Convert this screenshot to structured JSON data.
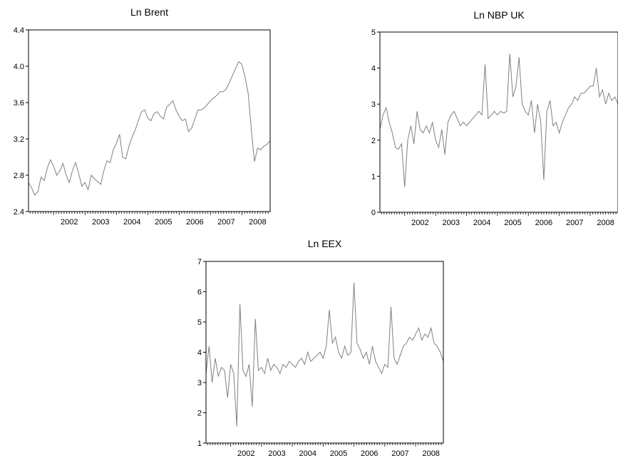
{
  "chart_data": [
    {
      "type": "line",
      "title": "Ln Brent",
      "xlabel": "",
      "ylabel": "",
      "xlim": [
        2001.2,
        2008.9
      ],
      "ylim": [
        2.4,
        4.4
      ],
      "yticks": [
        2.4,
        2.8,
        3.2,
        3.6,
        4.0,
        4.4
      ],
      "ytick_labels": [
        "2.4",
        "2.8",
        "3.2",
        "3.6",
        "4.0",
        "4.4"
      ],
      "xticks": [
        2002,
        2003,
        2004,
        2005,
        2006,
        2007,
        2008
      ],
      "xtick_labels": [
        "2002",
        "2003",
        "2004",
        "2005",
        "2006",
        "2007",
        "2008"
      ],
      "grid": false,
      "line_color": "#808080",
      "series": [
        {
          "x": [
            2001.2,
            2001.3,
            2001.4,
            2001.5,
            2001.6,
            2001.7,
            2001.8,
            2001.9,
            2002.0,
            2002.1,
            2002.2,
            2002.3,
            2002.4,
            2002.5,
            2002.6,
            2002.7,
            2002.8,
            2002.9,
            2003.0,
            2003.1,
            2003.2,
            2003.3,
            2003.4,
            2003.5,
            2003.6,
            2003.7,
            2003.8,
            2003.9,
            2004.0,
            2004.1,
            2004.2,
            2004.3,
            2004.4,
            2004.5,
            2004.6,
            2004.7,
            2004.8,
            2004.9,
            2005.0,
            2005.1,
            2005.2,
            2005.3,
            2005.4,
            2005.5,
            2005.6,
            2005.7,
            2005.8,
            2005.9,
            2006.0,
            2006.1,
            2006.2,
            2006.3,
            2006.4,
            2006.5,
            2006.6,
            2006.7,
            2006.8,
            2006.9,
            2007.0,
            2007.1,
            2007.2,
            2007.3,
            2007.4,
            2007.5,
            2007.6,
            2007.7,
            2007.8,
            2007.9,
            2008.0,
            2008.1,
            2008.2,
            2008.3,
            2008.4,
            2008.5,
            2008.6,
            2008.7,
            2008.8,
            2008.9
          ],
          "values": [
            2.72,
            2.66,
            2.58,
            2.62,
            2.78,
            2.74,
            2.88,
            2.97,
            2.9,
            2.8,
            2.85,
            2.93,
            2.8,
            2.72,
            2.85,
            2.94,
            2.82,
            2.68,
            2.72,
            2.64,
            2.8,
            2.76,
            2.73,
            2.7,
            2.85,
            2.96,
            2.94,
            3.08,
            3.15,
            3.25,
            3.0,
            2.98,
            3.12,
            3.22,
            3.3,
            3.4,
            3.5,
            3.52,
            3.43,
            3.4,
            3.48,
            3.5,
            3.45,
            3.42,
            3.55,
            3.58,
            3.62,
            3.52,
            3.45,
            3.4,
            3.42,
            3.28,
            3.32,
            3.42,
            3.52,
            3.52,
            3.54,
            3.58,
            3.62,
            3.65,
            3.68,
            3.72,
            3.72,
            3.75,
            3.82,
            3.9,
            3.98,
            4.05,
            4.02,
            3.88,
            3.7,
            3.3,
            2.95,
            3.1,
            3.08,
            3.12,
            3.14,
            3.18
          ]
        }
      ]
    },
    {
      "type": "line",
      "title": "Ln NBP UK",
      "xlabel": "",
      "ylabel": "",
      "xlim": [
        2001.2,
        2008.9
      ],
      "ylim": [
        0,
        5
      ],
      "yticks": [
        0,
        1,
        2,
        3,
        4,
        5
      ],
      "ytick_labels": [
        "0",
        "1",
        "2",
        "3",
        "4",
        "5"
      ],
      "xticks": [
        2002,
        2003,
        2004,
        2005,
        2006,
        2007,
        2008
      ],
      "xtick_labels": [
        "2002",
        "2003",
        "2004",
        "2005",
        "2006",
        "2007",
        "2008"
      ],
      "grid": false,
      "line_color": "#808080",
      "series": [
        {
          "x": [
            2001.2,
            2001.3,
            2001.4,
            2001.5,
            2001.6,
            2001.7,
            2001.8,
            2001.9,
            2002.0,
            2002.1,
            2002.2,
            2002.3,
            2002.4,
            2002.5,
            2002.6,
            2002.7,
            2002.8,
            2002.9,
            2003.0,
            2003.1,
            2003.2,
            2003.3,
            2003.4,
            2003.5,
            2003.6,
            2003.7,
            2003.8,
            2003.9,
            2004.0,
            2004.1,
            2004.2,
            2004.3,
            2004.4,
            2004.5,
            2004.6,
            2004.7,
            2004.8,
            2004.9,
            2005.0,
            2005.1,
            2005.2,
            2005.3,
            2005.4,
            2005.5,
            2005.6,
            2005.7,
            2005.8,
            2005.9,
            2006.0,
            2006.1,
            2006.2,
            2006.3,
            2006.4,
            2006.5,
            2006.6,
            2006.7,
            2006.8,
            2006.9,
            2007.0,
            2007.1,
            2007.2,
            2007.3,
            2007.4,
            2007.5,
            2007.6,
            2007.7,
            2007.8,
            2007.9,
            2008.0,
            2008.1,
            2008.2,
            2008.3,
            2008.4,
            2008.5,
            2008.6,
            2008.7,
            2008.8,
            2008.9
          ],
          "values": [
            2.3,
            2.7,
            2.9,
            2.5,
            2.2,
            1.8,
            1.75,
            1.9,
            0.7,
            2.0,
            2.4,
            1.9,
            2.8,
            2.3,
            2.2,
            2.4,
            2.2,
            2.5,
            2.0,
            1.8,
            2.3,
            1.6,
            2.5,
            2.7,
            2.8,
            2.6,
            2.4,
            2.5,
            2.4,
            2.5,
            2.6,
            2.7,
            2.8,
            2.7,
            4.1,
            2.6,
            2.7,
            2.8,
            2.7,
            2.8,
            2.75,
            2.8,
            4.4,
            3.2,
            3.5,
            4.3,
            3.0,
            2.8,
            2.7,
            3.1,
            2.2,
            3.0,
            2.5,
            0.9,
            2.8,
            3.1,
            2.4,
            2.5,
            2.2,
            2.5,
            2.7,
            2.9,
            3.0,
            3.2,
            3.1,
            3.3,
            3.3,
            3.4,
            3.5,
            3.5,
            4.0,
            3.2,
            3.4,
            3.0,
            3.3,
            3.1,
            3.2,
            3.0
          ]
        }
      ]
    },
    {
      "type": "line",
      "title": "Ln EEX",
      "xlabel": "",
      "ylabel": "",
      "xlim": [
        2001.2,
        2008.9
      ],
      "ylim": [
        1,
        7
      ],
      "yticks": [
        1,
        2,
        3,
        4,
        5,
        6,
        7
      ],
      "ytick_labels": [
        "1",
        "2",
        "3",
        "4",
        "5",
        "6",
        "7"
      ],
      "xticks": [
        2002,
        2003,
        2004,
        2005,
        2006,
        2007,
        2008
      ],
      "xtick_labels": [
        "2002",
        "2003",
        "2004",
        "2005",
        "2006",
        "2007",
        "2008"
      ],
      "grid": false,
      "line_color": "#808080",
      "series": [
        {
          "x": [
            2001.2,
            2001.3,
            2001.4,
            2001.5,
            2001.6,
            2001.7,
            2001.8,
            2001.9,
            2002.0,
            2002.1,
            2002.2,
            2002.3,
            2002.4,
            2002.5,
            2002.6,
            2002.7,
            2002.8,
            2002.9,
            2003.0,
            2003.1,
            2003.2,
            2003.3,
            2003.4,
            2003.5,
            2003.6,
            2003.7,
            2003.8,
            2003.9,
            2004.0,
            2004.1,
            2004.2,
            2004.3,
            2004.4,
            2004.5,
            2004.6,
            2004.7,
            2004.8,
            2004.9,
            2005.0,
            2005.1,
            2005.2,
            2005.3,
            2005.4,
            2005.5,
            2005.6,
            2005.7,
            2005.8,
            2005.9,
            2006.0,
            2006.1,
            2006.2,
            2006.3,
            2006.4,
            2006.5,
            2006.6,
            2006.7,
            2006.8,
            2006.9,
            2007.0,
            2007.1,
            2007.2,
            2007.3,
            2007.4,
            2007.5,
            2007.6,
            2007.7,
            2007.8,
            2007.9,
            2008.0,
            2008.1,
            2008.2,
            2008.3,
            2008.4,
            2008.5,
            2008.6,
            2008.7,
            2008.8,
            2008.9
          ],
          "values": [
            3.3,
            4.2,
            3.0,
            3.8,
            3.2,
            3.5,
            3.4,
            2.5,
            3.6,
            3.3,
            1.55,
            5.6,
            3.4,
            3.2,
            3.6,
            2.2,
            5.1,
            3.4,
            3.5,
            3.3,
            3.8,
            3.4,
            3.6,
            3.5,
            3.3,
            3.6,
            3.5,
            3.7,
            3.6,
            3.5,
            3.7,
            3.8,
            3.6,
            4.0,
            3.7,
            3.8,
            3.9,
            4.0,
            3.8,
            4.2,
            5.4,
            4.3,
            4.5,
            4.0,
            3.8,
            4.2,
            3.9,
            4.0,
            6.3,
            4.3,
            4.1,
            3.8,
            4.0,
            3.6,
            4.2,
            3.7,
            3.5,
            3.3,
            3.6,
            3.5,
            5.5,
            3.8,
            3.6,
            3.9,
            4.2,
            4.3,
            4.5,
            4.4,
            4.6,
            4.8,
            4.4,
            4.6,
            4.5,
            4.8,
            4.3,
            4.2,
            4.0,
            3.7
          ]
        }
      ]
    }
  ]
}
